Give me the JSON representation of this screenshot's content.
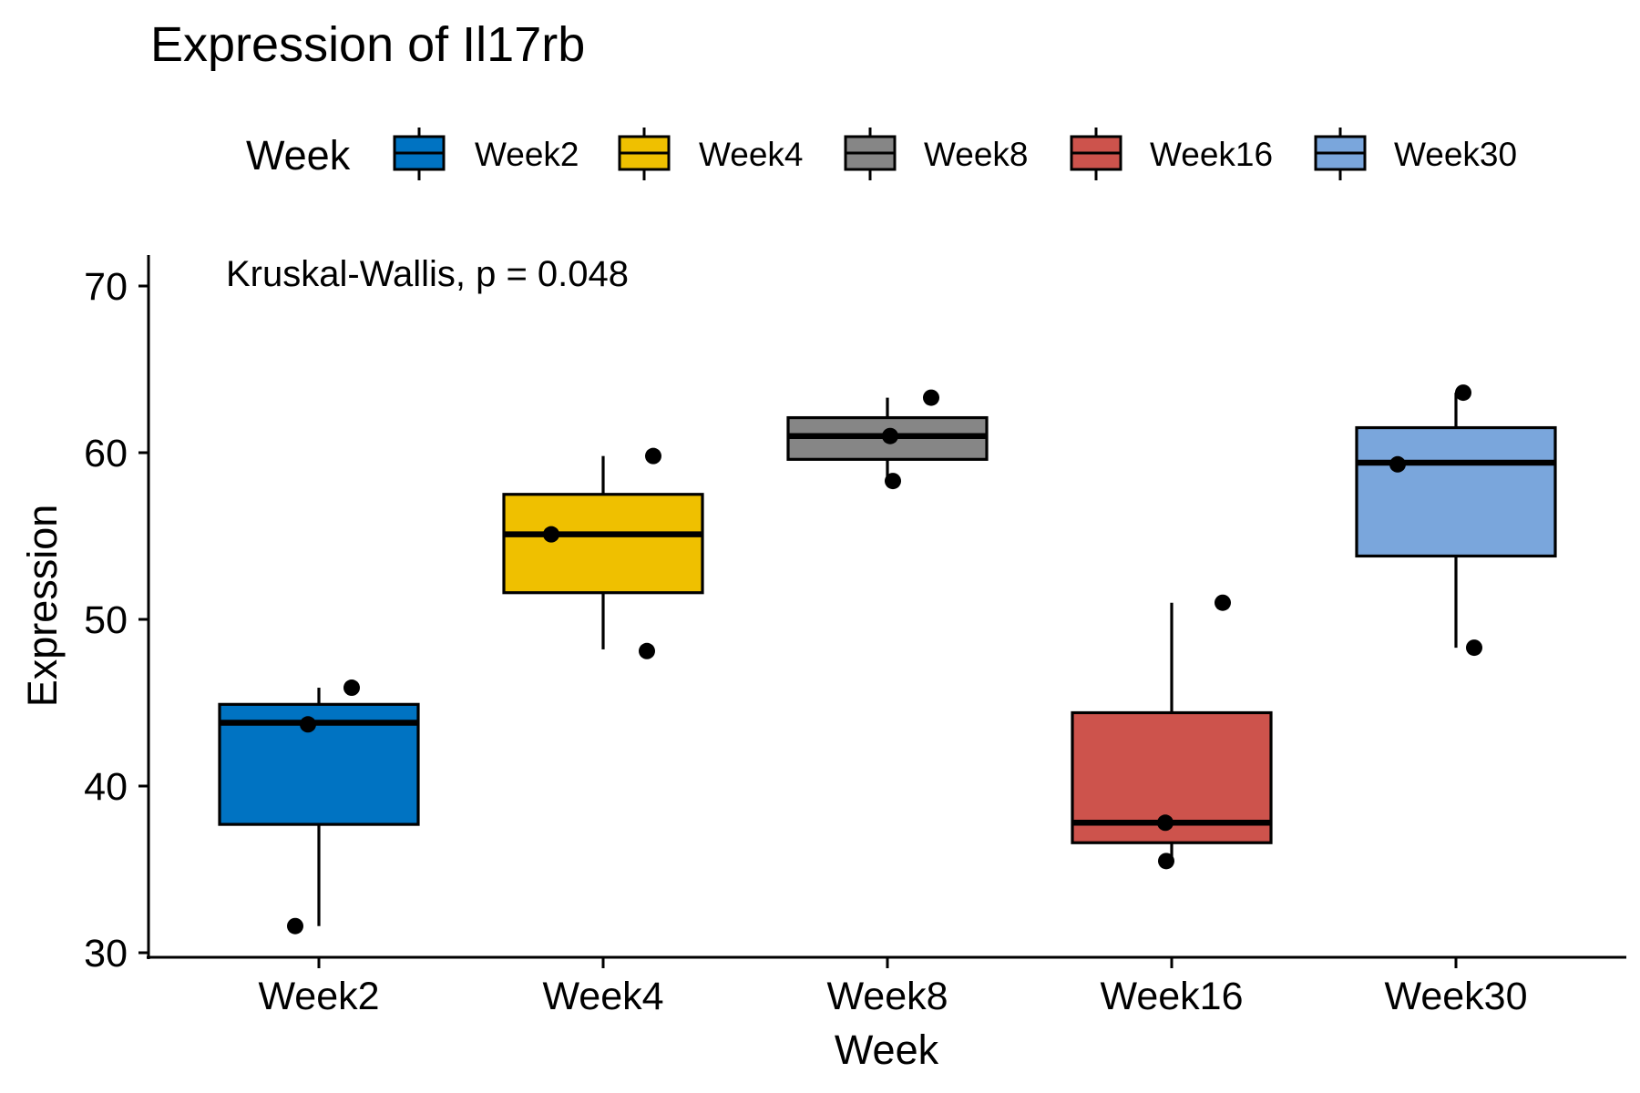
{
  "chart_data": {
    "type": "box",
    "title": "Expression of Il17rb",
    "xlabel": "Week",
    "ylabel": "Expression",
    "ylim": [
      29.5,
      72
    ],
    "yticks": [
      30,
      40,
      50,
      60,
      70
    ],
    "annotation": "Kruskal-Wallis, p = 0.048",
    "legend": {
      "title": "Week",
      "position": "top"
    },
    "grid": false,
    "categories": [
      "Week2",
      "Week4",
      "Week8",
      "Week16",
      "Week30"
    ],
    "series": [
      {
        "name": "Week2",
        "color": "#0073C2",
        "whisker_low": 31.6,
        "q1": 37.7,
        "median": 43.8,
        "q3": 44.9,
        "whisker_high": 45.9,
        "points": [
          31.6,
          43.7,
          45.9
        ]
      },
      {
        "name": "Week4",
        "color": "#EFC000",
        "whisker_low": 48.2,
        "q1": 51.6,
        "median": 55.1,
        "q3": 57.5,
        "whisker_high": 59.8,
        "points": [
          48.1,
          55.1,
          59.8
        ]
      },
      {
        "name": "Week8",
        "color": "#868686",
        "whisker_low": 58.3,
        "q1": 59.6,
        "median": 61.0,
        "q3": 62.1,
        "whisker_high": 63.3,
        "points": [
          58.3,
          61.0,
          63.3
        ]
      },
      {
        "name": "Week16",
        "color": "#CD534C",
        "whisker_low": 35.5,
        "q1": 36.6,
        "median": 37.8,
        "q3": 44.4,
        "whisker_high": 51.0,
        "points": [
          35.5,
          37.8,
          51.0
        ]
      },
      {
        "name": "Week30",
        "color": "#7AA6DC",
        "whisker_low": 48.3,
        "q1": 53.8,
        "median": 59.4,
        "q3": 61.5,
        "whisker_high": 63.6,
        "points": [
          48.3,
          59.3,
          63.6
        ]
      }
    ]
  }
}
